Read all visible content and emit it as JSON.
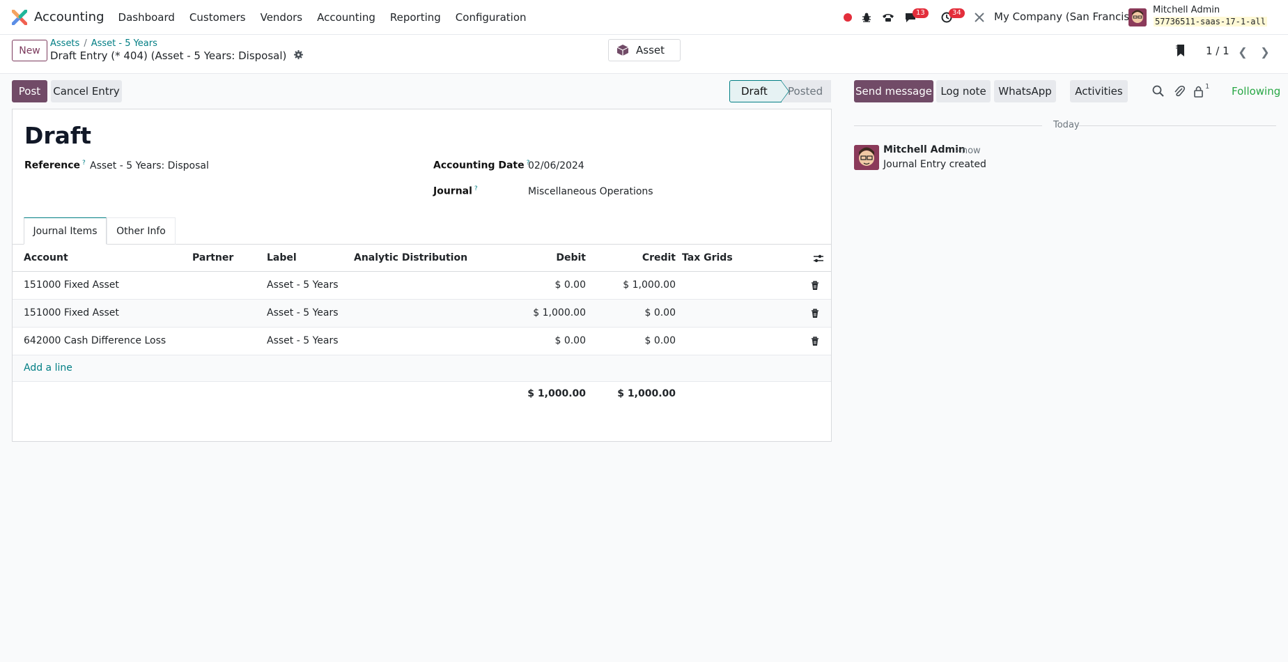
{
  "navbar": {
    "app_name": "Accounting",
    "menu": [
      "Dashboard",
      "Customers",
      "Vendors",
      "Accounting",
      "Reporting",
      "Configuration"
    ],
    "messages_badge": "13",
    "activities_badge": "34",
    "company": "My Company (San Francisco)",
    "user_name": "Mitchell Admin",
    "database": "57736511-saas-17-1-all"
  },
  "control": {
    "new_label": "New",
    "breadcrumb": [
      "Assets",
      "Asset - 5 Years"
    ],
    "current_record": "Draft Entry (* 404) (Asset - 5 Years: Disposal)",
    "asset_button": "Asset",
    "pager": "1 / 1"
  },
  "actions": {
    "post": "Post",
    "cancel_entry": "Cancel Entry"
  },
  "statusbar": {
    "stages": [
      "Draft",
      "Posted"
    ],
    "current": "Draft"
  },
  "form": {
    "title": "Draft",
    "reference_label": "Reference",
    "reference_value": "Asset - 5 Years: Disposal",
    "accounting_date_label": "Accounting Date",
    "accounting_date_value": "02/06/2024",
    "journal_label": "Journal",
    "journal_value": "Miscellaneous Operations",
    "help_mark": "?"
  },
  "tabs": [
    "Journal Items",
    "Other Info"
  ],
  "journal_items": {
    "columns": [
      "Account",
      "Partner",
      "Label",
      "Analytic Distribution",
      "Debit",
      "Credit",
      "Tax Grids"
    ],
    "rows": [
      {
        "account": "151000 Fixed Asset",
        "partner": "",
        "label": "Asset - 5 Years",
        "analytic": "",
        "debit": "$ 0.00",
        "credit": "$ 1,000.00",
        "tax_grids": ""
      },
      {
        "account": "151000 Fixed Asset",
        "partner": "",
        "label": "Asset - 5 Years",
        "analytic": "",
        "debit": "$ 1,000.00",
        "credit": "$ 0.00",
        "tax_grids": ""
      },
      {
        "account": "642000 Cash Difference Loss",
        "partner": "",
        "label": "Asset - 5 Years",
        "analytic": "",
        "debit": "$ 0.00",
        "credit": "$ 0.00",
        "tax_grids": ""
      }
    ],
    "add_line": "Add a line",
    "total_debit": "$ 1,000.00",
    "total_credit": "$ 1,000.00"
  },
  "chatter": {
    "send_message": "Send message",
    "log_note": "Log note",
    "whatsapp": "WhatsApp",
    "activities": "Activities",
    "followers_count": "1",
    "following": "Following",
    "date_separator": "Today",
    "message": {
      "author": "Mitchell Admin",
      "time": "- now",
      "body": "Journal Entry created"
    }
  },
  "colors": {
    "primary": "#714b67",
    "link": "#017e84",
    "badge": "#e32e3b",
    "following": "#28a745"
  }
}
